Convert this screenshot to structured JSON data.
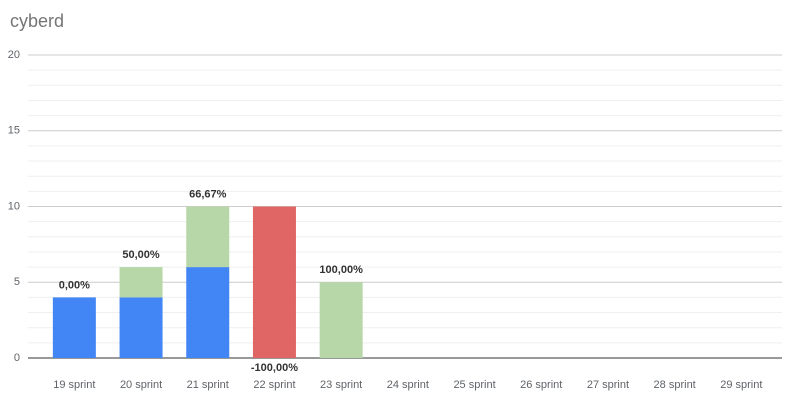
{
  "chart_data": {
    "type": "stacked_bar",
    "title": "cyberd",
    "categories": [
      "19 sprint",
      "20 sprint",
      "21 sprint",
      "22 sprint",
      "23 sprint",
      "24 sprint",
      "25 sprint",
      "26 sprint",
      "27 sprint",
      "28 sprint",
      "29 sprint"
    ],
    "series": [
      {
        "color": "#4285f4",
        "values": [
          4,
          4,
          6,
          null,
          null,
          null,
          null,
          null,
          null,
          null,
          null
        ]
      },
      {
        "color": "#b7d7a8",
        "values": [
          null,
          2,
          4,
          null,
          5,
          null,
          null,
          null,
          null,
          null,
          null
        ]
      },
      {
        "color": "#e06666",
        "values": [
          null,
          null,
          null,
          10,
          null,
          null,
          null,
          null,
          null,
          null,
          null
        ]
      }
    ],
    "bar_labels": [
      "0,00%",
      "50,00%",
      "66,67%",
      "-100,00%",
      "100,00%",
      null,
      null,
      null,
      null,
      null,
      null
    ],
    "ylim": [
      0,
      20
    ],
    "yticks": [
      0,
      5,
      10,
      15,
      20
    ],
    "minor_yticks": [
      1,
      2,
      3,
      4,
      6,
      7,
      8,
      9,
      11,
      12,
      13,
      14,
      16,
      17,
      18,
      19
    ],
    "grid": true
  }
}
